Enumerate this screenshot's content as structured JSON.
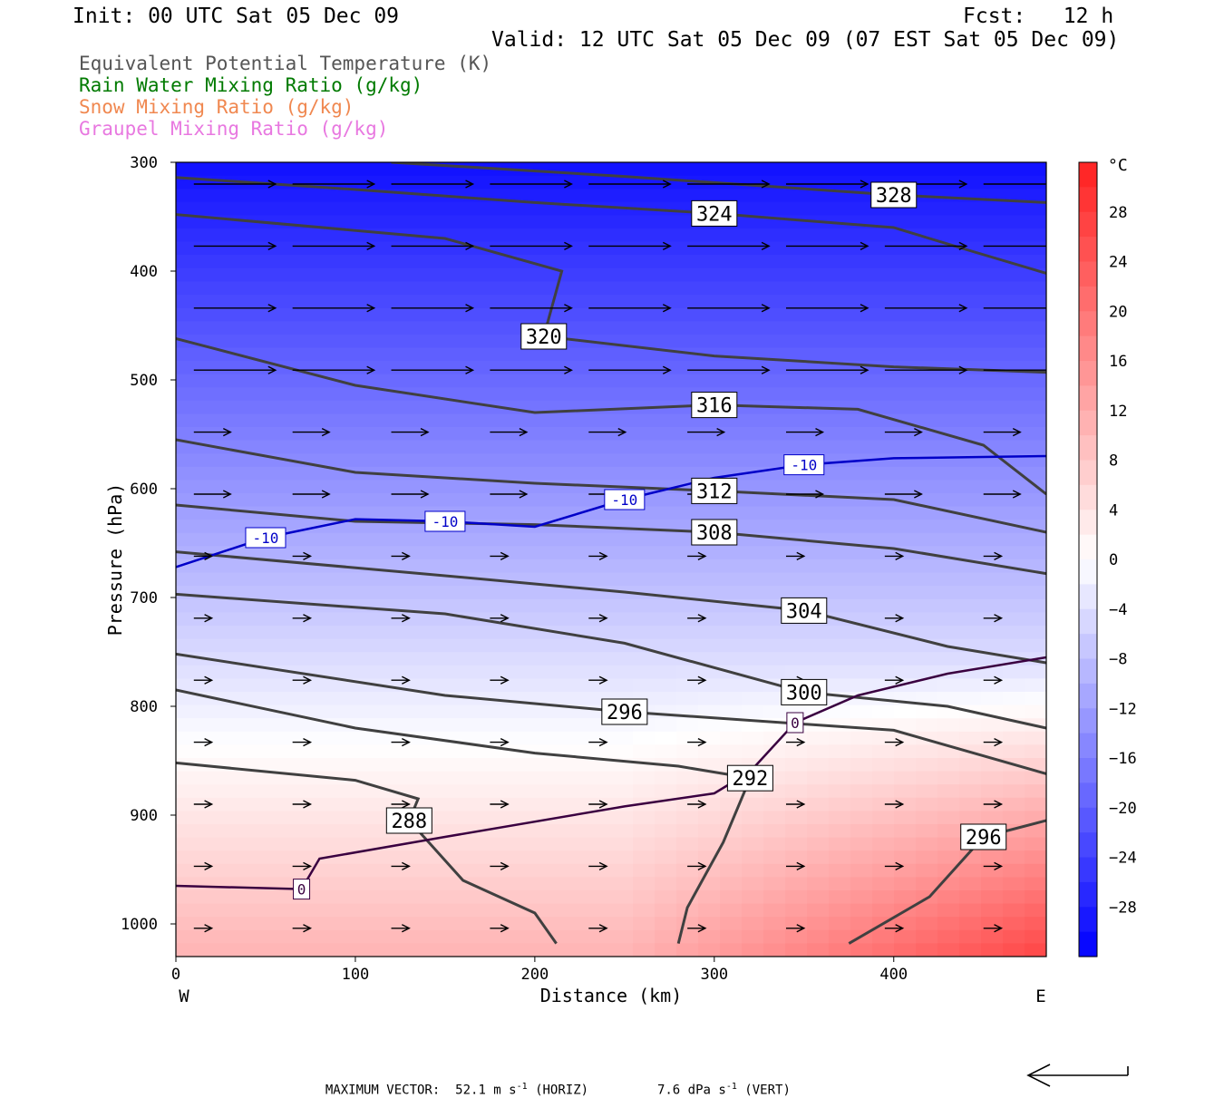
{
  "header": {
    "init": "Init: 00 UTC Sat 05 Dec 09",
    "fcst": "Fcst:   12 h",
    "valid": "Valid: 12 UTC Sat 05 Dec 09 (07 EST Sat 05 Dec 09)"
  },
  "legend": [
    {
      "label": "Equivalent Potential Temperature (K)",
      "color": "#555555"
    },
    {
      "label": "Rain Water Mixing Ratio (g/kg)",
      "color": "#007a00"
    },
    {
      "label": "Snow Mixing Ratio (g/kg)",
      "color": "#f08850"
    },
    {
      "label": "Graupel Mixing Ratio (g/kg)",
      "color": "#e878e0"
    }
  ],
  "chart_data": {
    "type": "heatmap",
    "xlabel": "Distance (km)",
    "ylabel": "Pressure (hPa)",
    "xlim": [
      0,
      485
    ],
    "ylim": [
      1030,
      300
    ],
    "x_ticks": [
      0,
      100,
      200,
      300,
      400
    ],
    "y_ticks": [
      300,
      400,
      500,
      600,
      700,
      800,
      900,
      1000
    ],
    "x_end_labels": {
      "left": "W",
      "right": "E"
    },
    "fill_field": "Temperature (°C)",
    "colorbar": {
      "unit": "°C",
      "ticks": [
        28,
        24,
        20,
        16,
        12,
        8,
        4,
        0,
        -4,
        -8,
        -12,
        -16,
        -20,
        -24,
        -28
      ],
      "range": [
        -32,
        32
      ],
      "cold_color": "#0000ff",
      "warm_color": "#ff2020"
    },
    "theta_e_contours": {
      "color": "#404040",
      "lines": [
        {
          "value": 328,
          "pts": [
            [
              120,
              300
            ],
            [
              250,
              313
            ],
            [
              400,
              330
            ],
            [
              485,
              337
            ]
          ]
        },
        {
          "value": 324,
          "pts": [
            [
              0,
              314
            ],
            [
              100,
              325
            ],
            [
              200,
              337
            ],
            [
              300,
              347
            ],
            [
              400,
              360
            ],
            [
              440,
              380
            ],
            [
              485,
              402
            ]
          ]
        },
        {
          "value": 320,
          "pts": [
            [
              0,
              348
            ],
            [
              150,
              370
            ],
            [
              215,
              400
            ],
            [
              205,
              460
            ],
            [
              300,
              478
            ],
            [
              400,
              488
            ],
            [
              485,
              493
            ]
          ]
        },
        {
          "value": 316,
          "pts": [
            [
              0,
              462
            ],
            [
              100,
              505
            ],
            [
              200,
              530
            ],
            [
              300,
              523
            ],
            [
              380,
              527
            ],
            [
              450,
              560
            ],
            [
              485,
              605
            ]
          ]
        },
        {
          "value": 312,
          "pts": [
            [
              0,
              555
            ],
            [
              100,
              585
            ],
            [
              200,
              595
            ],
            [
              300,
              602
            ],
            [
              400,
              610
            ],
            [
              485,
              640
            ]
          ]
        },
        {
          "value": 308,
          "pts": [
            [
              0,
              615
            ],
            [
              100,
              630
            ],
            [
              200,
              633
            ],
            [
              300,
              640
            ],
            [
              400,
              655
            ],
            [
              485,
              678
            ]
          ]
        },
        {
          "value": 304,
          "pts": [
            [
              0,
              658
            ],
            [
              150,
              680
            ],
            [
              250,
              695
            ],
            [
              350,
              712
            ],
            [
              430,
              745
            ],
            [
              485,
              760
            ]
          ]
        },
        {
          "value": 300,
          "pts": [
            [
              0,
              697
            ],
            [
              150,
              715
            ],
            [
              250,
              742
            ],
            [
              350,
              787
            ],
            [
              430,
              800
            ],
            [
              485,
              820
            ]
          ]
        },
        {
          "value": 296,
          "pts": [
            [
              0,
              752
            ],
            [
              150,
              790
            ],
            [
              250,
              805
            ],
            [
              400,
              822
            ],
            [
              485,
              862
            ]
          ]
        },
        {
          "value": 292,
          "pts": [
            [
              0,
              785
            ],
            [
              100,
              820
            ],
            [
              200,
              843
            ],
            [
              280,
              855
            ],
            [
              320,
              866
            ],
            [
              305,
              925
            ],
            [
              285,
              985
            ],
            [
              280,
              1018
            ]
          ]
        },
        {
          "value": 288,
          "pts": [
            [
              0,
              852
            ],
            [
              100,
              868
            ],
            [
              135,
              885
            ],
            [
              130,
              905
            ],
            [
              160,
              960
            ],
            [
              200,
              990
            ],
            [
              212,
              1018
            ]
          ]
        },
        {
          "value": 296,
          "pts": [
            [
              375,
              1018
            ],
            [
              420,
              975
            ],
            [
              450,
              920
            ],
            [
              485,
              905
            ]
          ]
        }
      ]
    },
    "isotherms": [
      {
        "value": -10,
        "color": "#0000c8",
        "pts": [
          [
            0,
            672
          ],
          [
            50,
            645
          ],
          [
            100,
            628
          ],
          [
            150,
            630
          ],
          [
            200,
            635
          ],
          [
            250,
            610
          ],
          [
            300,
            590
          ],
          [
            350,
            578
          ],
          [
            400,
            572
          ],
          [
            485,
            570
          ]
        ]
      },
      {
        "value": 0,
        "color": "#3a0040",
        "pts": [
          [
            0,
            965
          ],
          [
            70,
            968
          ],
          [
            80,
            940
          ],
          [
            150,
            920
          ],
          [
            250,
            892
          ],
          [
            300,
            880
          ],
          [
            320,
            860
          ],
          [
            345,
            815
          ],
          [
            380,
            790
          ],
          [
            430,
            770
          ],
          [
            485,
            755
          ]
        ]
      }
    ],
    "temperature_field_note": "colder than -28 °C aloft, warming downward to about +12 °C near the surface at the east end",
    "wind_vectors_note": "westerly flow strongest near 300–450 hPa, weak below 700 hPa",
    "max_vector_text": {
      "label": "MAXIMUM VECTOR:",
      "horiz": "52.1 m s",
      "horiz_unit": "(HORIZ)",
      "vert": "7.6 dPa s",
      "vert_unit": "(VERT)",
      "exp": "-1"
    }
  }
}
